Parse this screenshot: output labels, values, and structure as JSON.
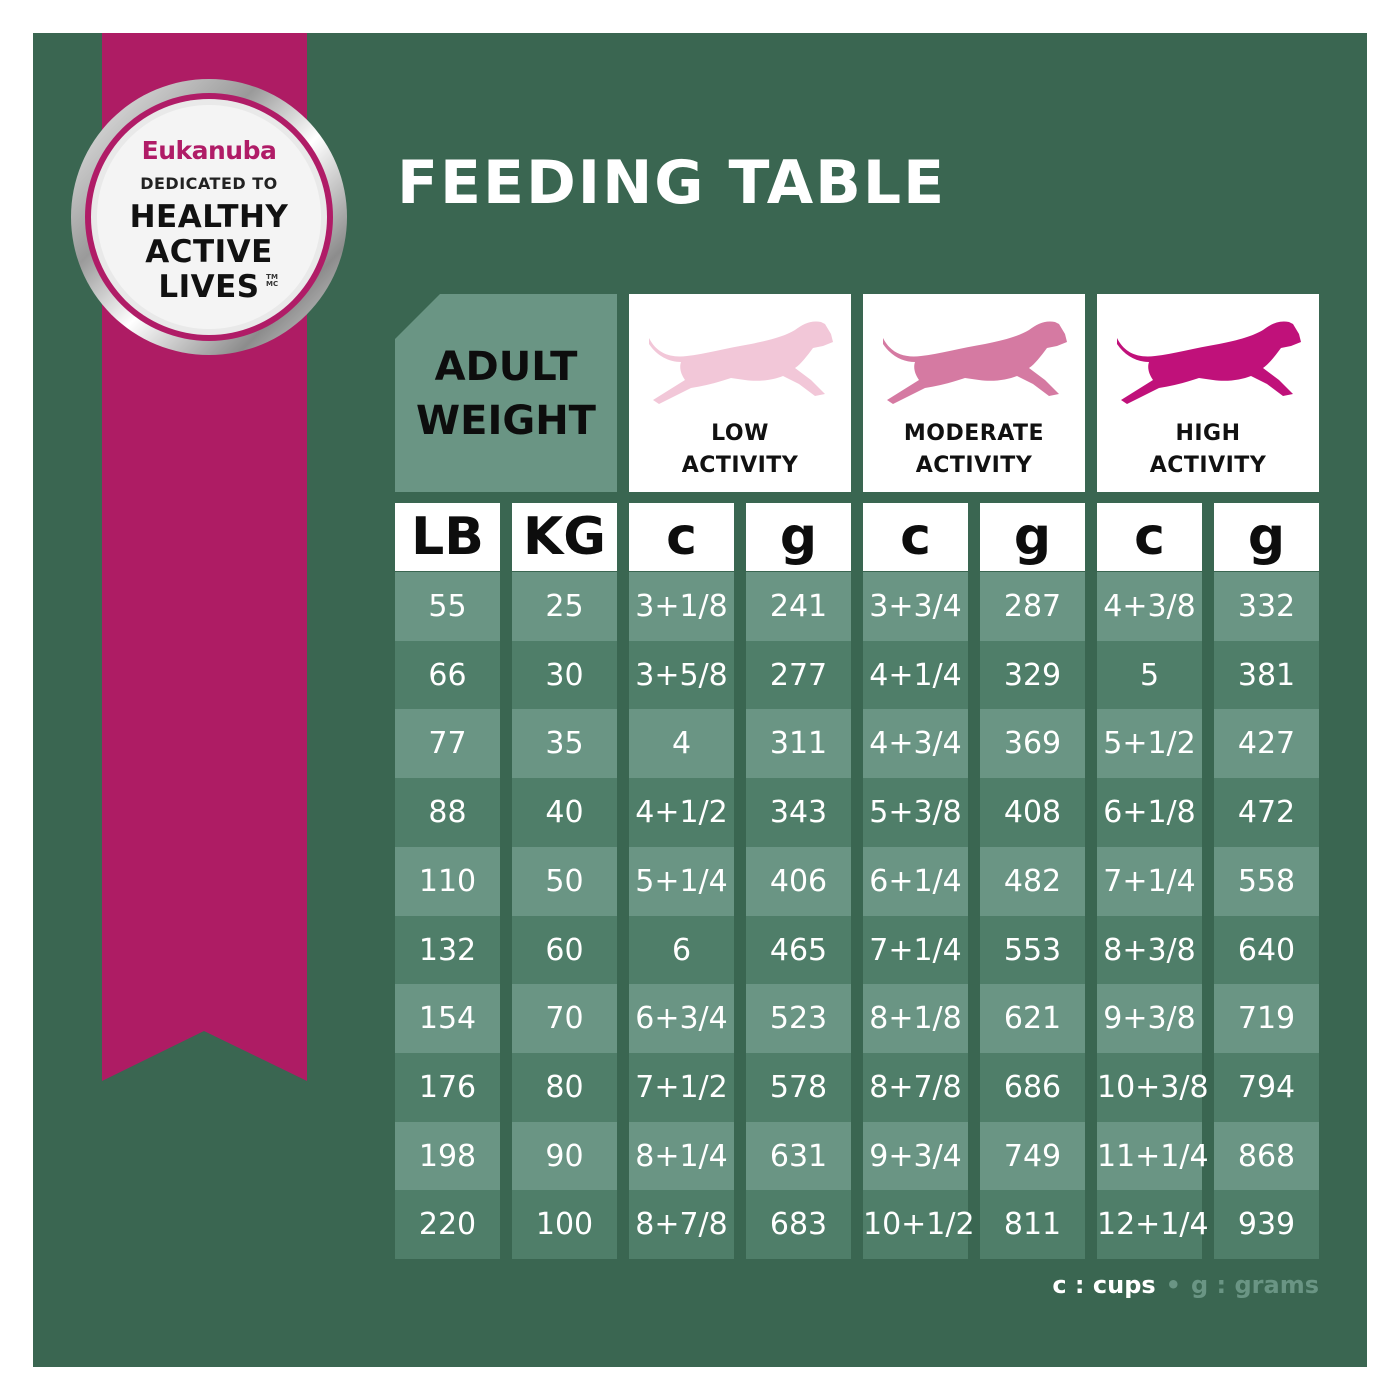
{
  "colors": {
    "panel": "#3a6651",
    "ribbon": "#ae1c64",
    "row_light": "#6a9584",
    "row_dark": "#4f7e69",
    "dog_low": "#f2c7d8",
    "dog_moderate": "#d57aa2",
    "dog_high": "#c0117a"
  },
  "badge": {
    "brand": "Eukanuba",
    "line1": "DEDICATED TO",
    "line2": "HEALTHY",
    "line3": "ACTIVE",
    "line4": "LIVES",
    "tm": "TM",
    "mc": "MC"
  },
  "title": "FEEDING TABLE",
  "weight_header": {
    "line1": "ADULT",
    "line2": "WEIGHT"
  },
  "activities": [
    {
      "line1": "LOW",
      "line2": "ACTIVITY",
      "icon": "running-dog-icon"
    },
    {
      "line1": "MODERATE",
      "line2": "ACTIVITY",
      "icon": "running-dog-icon"
    },
    {
      "line1": "HIGH",
      "line2": "ACTIVITY",
      "icon": "running-dog-icon"
    }
  ],
  "units": [
    "LB",
    "KG",
    "c",
    "g",
    "c",
    "g",
    "c",
    "g"
  ],
  "rows": [
    [
      "55",
      "25",
      "3+1/8",
      "241",
      "3+3/4",
      "287",
      "4+3/8",
      "332"
    ],
    [
      "66",
      "30",
      "3+5/8",
      "277",
      "4+1/4",
      "329",
      "5",
      "381"
    ],
    [
      "77",
      "35",
      "4",
      "311",
      "4+3/4",
      "369",
      "5+1/2",
      "427"
    ],
    [
      "88",
      "40",
      "4+1/2",
      "343",
      "5+3/8",
      "408",
      "6+1/8",
      "472"
    ],
    [
      "110",
      "50",
      "5+1/4",
      "406",
      "6+1/4",
      "482",
      "7+1/4",
      "558"
    ],
    [
      "132",
      "60",
      "6",
      "465",
      "7+1/4",
      "553",
      "8+3/8",
      "640"
    ],
    [
      "154",
      "70",
      "6+3/4",
      "523",
      "8+1/8",
      "621",
      "9+3/8",
      "719"
    ],
    [
      "176",
      "80",
      "7+1/2",
      "578",
      "8+7/8",
      "686",
      "10+3/8",
      "794"
    ],
    [
      "198",
      "90",
      "8+1/4",
      "631",
      "9+3/4",
      "749",
      "11+1/4",
      "868"
    ],
    [
      "220",
      "100",
      "8+7/8",
      "683",
      "10+1/2",
      "811",
      "12+1/4",
      "939"
    ]
  ],
  "legend": {
    "cups": "c : cups",
    "dot": "•",
    "grams": "g : grams"
  }
}
